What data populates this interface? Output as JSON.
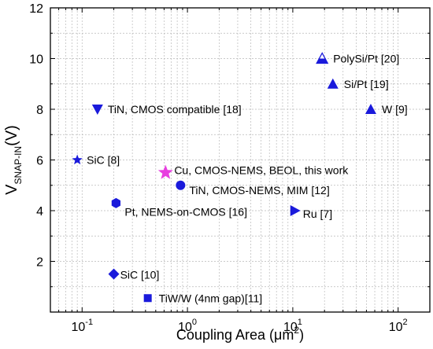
{
  "chart_data": {
    "type": "scatter",
    "x_scale": "log",
    "xlim": [
      0.05,
      200
    ],
    "ylim": [
      0,
      12
    ],
    "xlabel": {
      "main": "Coupling Area (μm",
      "sup": "2",
      "end": ")"
    },
    "ylabel": {
      "main": "V",
      "sub": "SNAP-IN",
      "end": "(V)"
    },
    "x_ticks": [
      {
        "value": 0.1,
        "base": "10",
        "exp": "-1"
      },
      {
        "value": 1,
        "base": "10",
        "exp": "0"
      },
      {
        "value": 10,
        "base": "10",
        "exp": "1"
      },
      {
        "value": 100,
        "base": "10",
        "exp": "2"
      }
    ],
    "y_ticks": [
      2,
      4,
      6,
      8,
      10,
      12
    ],
    "grid": true,
    "marker_color": "#1a1adb",
    "highlight_color": "#e83ee0",
    "points": [
      {
        "label": "PolySi/Pt [20]",
        "x": 19,
        "y": 10,
        "marker": "triangle-half"
      },
      {
        "label": "Si/Pt [19]",
        "x": 24,
        "y": 9,
        "marker": "triangle"
      },
      {
        "label": "W [9]",
        "x": 55,
        "y": 8,
        "marker": "triangle"
      },
      {
        "label": "TiN, CMOS compatible [18]",
        "x": 0.14,
        "y": 8,
        "marker": "triangle-down"
      },
      {
        "label": "SiC [8]",
        "x": 0.09,
        "y": 6,
        "marker": "star"
      },
      {
        "label": "Cu, CMOS-NEMS, BEOL, this work",
        "x": 0.62,
        "y": 5.5,
        "marker": "star-highlight"
      },
      {
        "label": "TiN, CMOS-NEMS, MIM [12]",
        "x": 0.86,
        "y": 5,
        "marker": "circle"
      },
      {
        "label": "Pt, NEMS-on-CMOS [16]",
        "x": 0.21,
        "y": 4.3,
        "marker": "hexagon"
      },
      {
        "label": "Ru [7]",
        "x": 10.5,
        "y": 4,
        "marker": "triangle-right"
      },
      {
        "label": "SiC [10]",
        "x": 0.2,
        "y": 1.5,
        "marker": "diamond"
      },
      {
        "label": "TiW/W (4nm gap)[11]",
        "x": 0.42,
        "y": 0.55,
        "marker": "square"
      }
    ]
  }
}
